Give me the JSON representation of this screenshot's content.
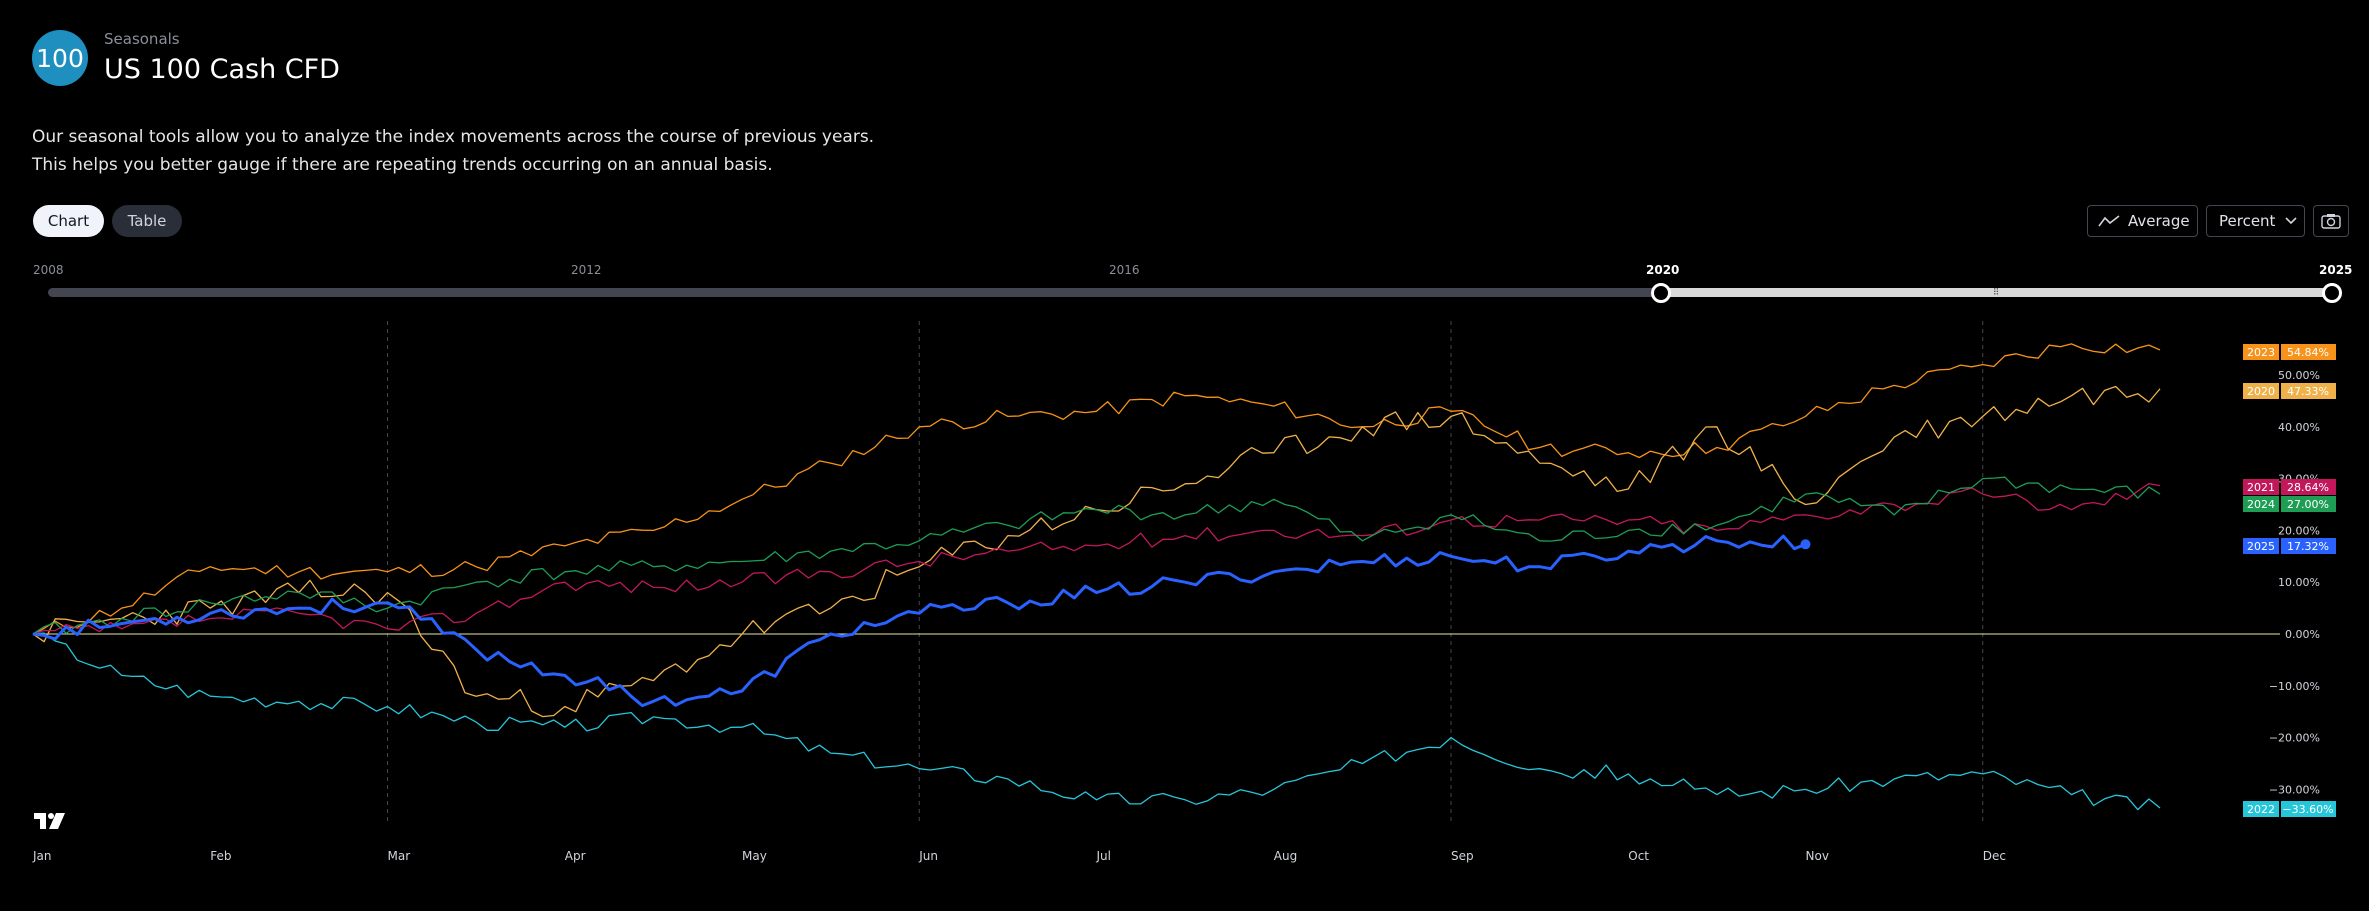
{
  "header": {
    "logo_text": "100",
    "subtitle": "Seasonals",
    "title": "US 100 Cash CFD",
    "description_line1": "Our seasonal tools allow you to analyze the index movements across the course of previous years.",
    "description_line2": "This helps you better gauge if there are repeating trends occurring on an annual basis."
  },
  "toolbar": {
    "chart_tab": "Chart",
    "table_tab": "Table",
    "average_label": "Average",
    "percent_label": "Percent",
    "camera_icon": "camera-icon",
    "average_icon": "trend-line-icon",
    "chevron_icon": "chevron-down-icon"
  },
  "range_slider": {
    "ticks": [
      "2008",
      "2012",
      "2016",
      "2020",
      "2025"
    ],
    "selected_from": "2020",
    "selected_to": "2025",
    "handle_icon": "grip-icon"
  },
  "brand_icon": "tradingview-logo-icon",
  "chart_data": {
    "type": "line",
    "x_ticks": [
      "Jan",
      "Feb",
      "Mar",
      "Apr",
      "May",
      "Jun",
      "Jul",
      "Aug",
      "Sep",
      "Oct",
      "Nov",
      "Dec"
    ],
    "y_ticks": [
      "50.00%",
      "40.00%",
      "30.00%",
      "20.00%",
      "10.00%",
      "0.00%",
      "−10.00%",
      "−20.00%",
      "−30.00%"
    ],
    "ylim": [
      -36,
      58
    ],
    "y_unit": "%",
    "grid": "vertical dashed at quarter boundaries",
    "legend": "right-side value tags",
    "x_months": [
      0,
      0.5,
      1,
      1.5,
      2,
      2.5,
      3,
      3.5,
      4,
      4.5,
      5,
      5.5,
      6,
      6.5,
      7,
      7.5,
      8,
      8.5,
      9,
      9.5,
      10,
      10.5,
      11,
      11.5,
      12
    ],
    "series": [
      {
        "name": "2023",
        "color": "#f7931a",
        "label": "54.84%",
        "values": [
          0,
          5,
          13,
          12,
          12,
          13,
          17,
          20,
          26,
          33,
          40,
          42,
          43,
          46,
          44,
          40,
          43,
          36,
          35,
          36,
          42,
          48,
          52,
          56,
          54.84
        ]
      },
      {
        "name": "2020",
        "color": "#f0b14a",
        "label": "47.33%",
        "values": [
          0,
          3,
          5,
          8,
          8,
          -12,
          -14,
          -9,
          0,
          5,
          13,
          19,
          24,
          29,
          35,
          40,
          42,
          33,
          28,
          40,
          25,
          38,
          42,
          46,
          47.33
        ]
      },
      {
        "name": "2021",
        "color": "#c2185b",
        "label": "28.64%",
        "values": [
          0,
          1,
          3,
          4,
          1,
          4,
          10,
          9,
          10,
          12,
          14,
          16,
          17,
          19,
          20,
          19,
          22,
          22,
          22,
          20,
          23,
          25,
          27,
          24,
          28.64
        ]
      },
      {
        "name": "2024",
        "color": "#1e9e55",
        "label": "27.00%",
        "values": [
          0,
          3,
          6,
          8,
          5,
          10,
          12,
          13,
          14,
          16,
          18,
          21,
          24,
          23,
          26,
          18,
          23,
          18,
          20,
          21,
          27,
          23,
          30,
          28,
          27.0
        ]
      },
      {
        "name": "2025",
        "color": "#2962ff",
        "label": "17.32%",
        "values": [
          0,
          2,
          4,
          5,
          6,
          -3,
          -8,
          -13,
          -11,
          0,
          4,
          6,
          8,
          10,
          12,
          14,
          15,
          13,
          16,
          18,
          17.32
        ]
      },
      {
        "name": "2022",
        "color": "#26c6da",
        "label": "−33.60%",
        "values": [
          0,
          -8,
          -12,
          -13,
          -14,
          -17,
          -18,
          -16,
          -18,
          -23,
          -26,
          -28,
          -32,
          -32,
          -30,
          -25,
          -20,
          -26,
          -27,
          -31,
          -30,
          -28,
          -27,
          -31,
          -33.6
        ]
      }
    ]
  }
}
